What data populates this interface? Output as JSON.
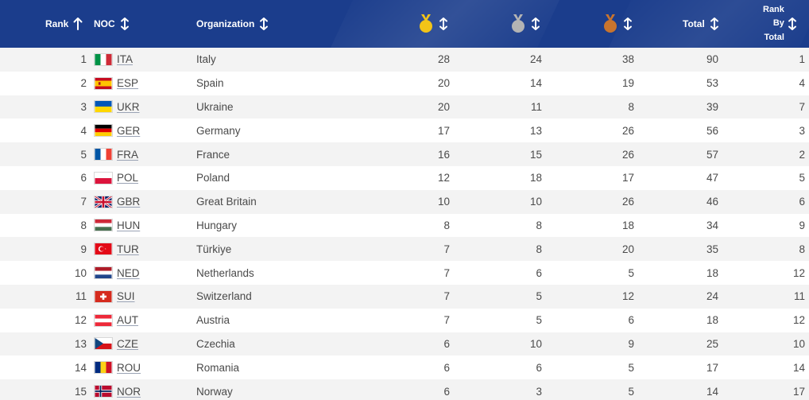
{
  "header": {
    "rank_label": "Rank",
    "noc_label": "NOC",
    "org_label": "Organization",
    "total_label": "Total",
    "rank_by_total_line1": "Rank",
    "rank_by_total_line2": "By",
    "rank_by_total_line3": "Total",
    "background_color": "#1b3d8c"
  },
  "colors": {
    "gold": "#f2c418",
    "silver": "#b4b4b4",
    "bronze": "#c8742e"
  },
  "rows": [
    {
      "rank": "1",
      "noc": "ITA",
      "org": "Italy",
      "gold": "28",
      "silver": "24",
      "bronze": "38",
      "total": "90",
      "rank_by_total": "1"
    },
    {
      "rank": "2",
      "noc": "ESP",
      "org": "Spain",
      "gold": "20",
      "silver": "14",
      "bronze": "19",
      "total": "53",
      "rank_by_total": "4"
    },
    {
      "rank": "3",
      "noc": "UKR",
      "org": "Ukraine",
      "gold": "20",
      "silver": "11",
      "bronze": "8",
      "total": "39",
      "rank_by_total": "7"
    },
    {
      "rank": "4",
      "noc": "GER",
      "org": "Germany",
      "gold": "17",
      "silver": "13",
      "bronze": "26",
      "total": "56",
      "rank_by_total": "3"
    },
    {
      "rank": "5",
      "noc": "FRA",
      "org": "France",
      "gold": "16",
      "silver": "15",
      "bronze": "26",
      "total": "57",
      "rank_by_total": "2"
    },
    {
      "rank": "6",
      "noc": "POL",
      "org": "Poland",
      "gold": "12",
      "silver": "18",
      "bronze": "17",
      "total": "47",
      "rank_by_total": "5"
    },
    {
      "rank": "7",
      "noc": "GBR",
      "org": "Great Britain",
      "gold": "10",
      "silver": "10",
      "bronze": "26",
      "total": "46",
      "rank_by_total": "6"
    },
    {
      "rank": "8",
      "noc": "HUN",
      "org": "Hungary",
      "gold": "8",
      "silver": "8",
      "bronze": "18",
      "total": "34",
      "rank_by_total": "9"
    },
    {
      "rank": "9",
      "noc": "TUR",
      "org": "Türkiye",
      "gold": "7",
      "silver": "8",
      "bronze": "20",
      "total": "35",
      "rank_by_total": "8"
    },
    {
      "rank": "10",
      "noc": "NED",
      "org": "Netherlands",
      "gold": "7",
      "silver": "6",
      "bronze": "5",
      "total": "18",
      "rank_by_total": "12"
    },
    {
      "rank": "11",
      "noc": "SUI",
      "org": "Switzerland",
      "gold": "7",
      "silver": "5",
      "bronze": "12",
      "total": "24",
      "rank_by_total": "11"
    },
    {
      "rank": "12",
      "noc": "AUT",
      "org": "Austria",
      "gold": "7",
      "silver": "5",
      "bronze": "6",
      "total": "18",
      "rank_by_total": "12"
    },
    {
      "rank": "13",
      "noc": "CZE",
      "org": "Czechia",
      "gold": "6",
      "silver": "10",
      "bronze": "9",
      "total": "25",
      "rank_by_total": "10"
    },
    {
      "rank": "14",
      "noc": "ROU",
      "org": "Romania",
      "gold": "6",
      "silver": "6",
      "bronze": "5",
      "total": "17",
      "rank_by_total": "14"
    },
    {
      "rank": "15",
      "noc": "NOR",
      "org": "Norway",
      "gold": "6",
      "silver": "3",
      "bronze": "5",
      "total": "14",
      "rank_by_total": "17"
    }
  ]
}
